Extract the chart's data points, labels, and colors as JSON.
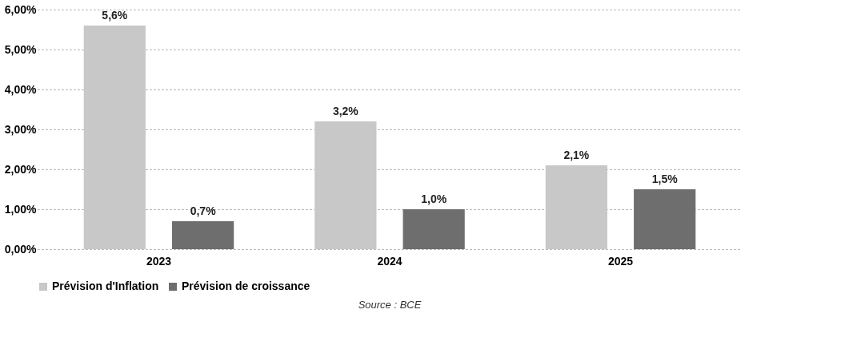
{
  "chart_data": {
    "type": "bar",
    "categories": [
      "2023",
      "2024",
      "2025"
    ],
    "series": [
      {
        "name": "Prévision d'Inflation",
        "color": "#c8c8c8",
        "values": [
          5.6,
          3.2,
          2.1
        ],
        "value_labels": [
          "5,6%",
          "3,2%",
          "2,1%"
        ]
      },
      {
        "name": "Prévision de croissance",
        "color": "#6e6e6e",
        "values": [
          0.7,
          1.0,
          1.5
        ],
        "value_labels": [
          "0,7%",
          "1,0%",
          "1,5%"
        ]
      }
    ],
    "ylim": [
      0,
      6
    ],
    "yticks": [
      {
        "value": 0,
        "label": "0,00%"
      },
      {
        "value": 1,
        "label": "1,00%"
      },
      {
        "value": 2,
        "label": "2,00%"
      },
      {
        "value": 3,
        "label": "3,00%"
      },
      {
        "value": 4,
        "label": "4,00%"
      },
      {
        "value": 5,
        "label": "5,00%"
      },
      {
        "value": 6,
        "label": "6,00%"
      }
    ],
    "grid": "y",
    "legend": "bottom",
    "annotations": [
      "Source : BCE"
    ]
  }
}
